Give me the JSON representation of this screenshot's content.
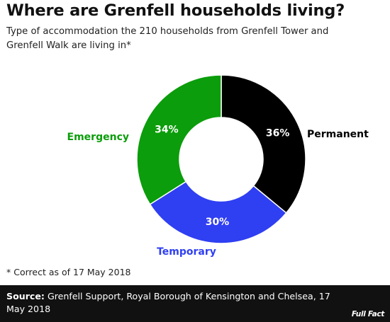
{
  "header": {
    "title": "Where are Grenfell households living?",
    "subtitle": "Type of accommodation the 210 households from Grenfell Tower and Grenfell Walk are living in*"
  },
  "chart_data": {
    "type": "pie",
    "donut": true,
    "slices": [
      {
        "label": "Permanent",
        "value": 36,
        "value_label": "36%",
        "color": "#000000",
        "label_color": "#000000"
      },
      {
        "label": "Temporary",
        "value": 30,
        "value_label": "30%",
        "color": "#2f3ff2",
        "label_color": "#2f3ff2"
      },
      {
        "label": "Emergency",
        "value": 34,
        "value_label": "34%",
        "color": "#0b9d0b",
        "label_color": "#0b9d0b"
      }
    ],
    "start": "12 o'clock",
    "direction": "clockwise"
  },
  "footnote": "* Correct as of 17 May 2018",
  "source": {
    "label": "Source:",
    "text": " Grenfell Support, Royal Borough of Kensington and Chelsea, 17 May 2018"
  },
  "logo": {
    "text": "Full Fact"
  }
}
